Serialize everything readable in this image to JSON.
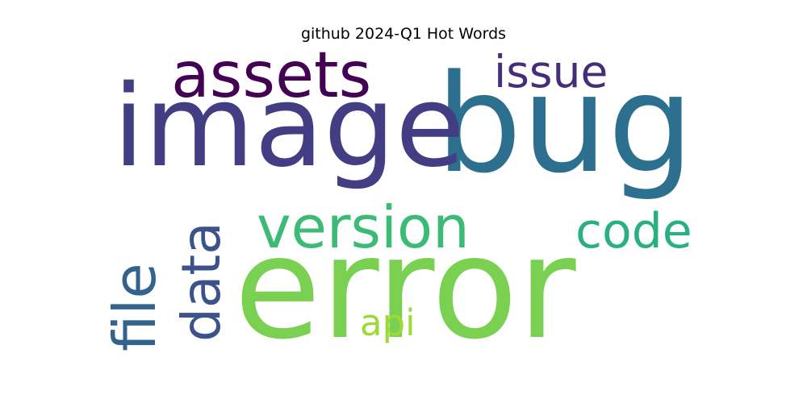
{
  "chart_data": {
    "type": "wordcloud",
    "title": "github 2024-Q1 Hot Words",
    "words": [
      {
        "text": "error",
        "color": "#7ad151"
      },
      {
        "text": "bug",
        "color": "#2c6f8e"
      },
      {
        "text": "image",
        "color": "#433d84"
      },
      {
        "text": "assets",
        "color": "#440154"
      },
      {
        "text": "version",
        "color": "#3bbb75"
      },
      {
        "text": "issue",
        "color": "#472c7a"
      },
      {
        "text": "code",
        "color": "#2ab07f"
      },
      {
        "text": "file",
        "color": "#33638d"
      },
      {
        "text": "data",
        "color": "#3b528b"
      },
      {
        "text": "api",
        "color": "#9ed93a"
      }
    ]
  }
}
